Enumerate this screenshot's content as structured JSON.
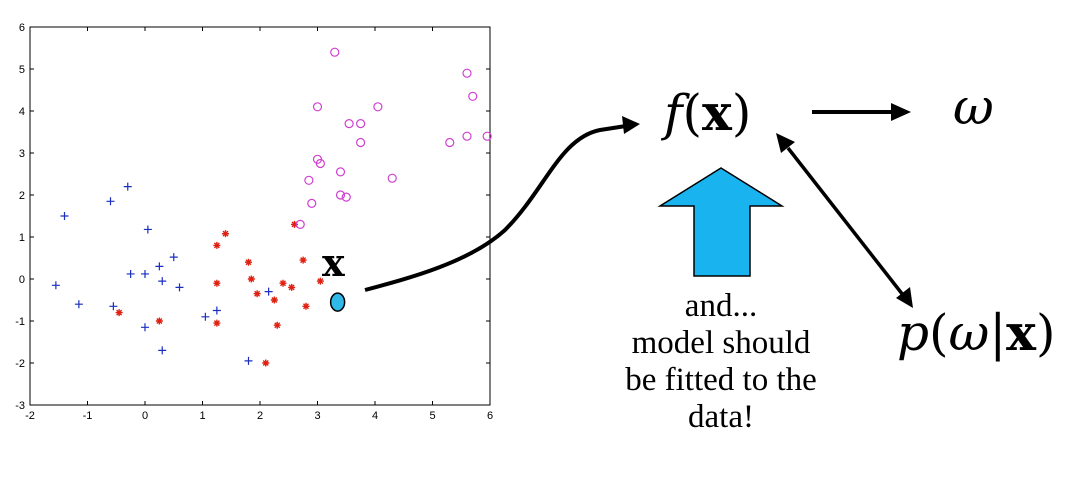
{
  "chart_data": {
    "type": "scatter",
    "xlim": [
      -2,
      6
    ],
    "ylim": [
      -3,
      6
    ],
    "x_ticks": [
      "-2",
      "-1",
      "0",
      "1",
      "2",
      "3",
      "4",
      "5",
      "6"
    ],
    "y_ticks": [
      "-3",
      "-2",
      "-1",
      "0",
      "1",
      "2",
      "3",
      "4",
      "5",
      "6"
    ],
    "series": [
      {
        "marker": "plus",
        "color": "#1a2fbf",
        "points": [
          [
            -1.55,
            -0.15
          ],
          [
            -1.4,
            1.5
          ],
          [
            -1.15,
            -0.6
          ],
          [
            -0.6,
            1.85
          ],
          [
            -0.55,
            -0.65
          ],
          [
            -0.3,
            2.2
          ],
          [
            -0.25,
            0.12
          ],
          [
            0,
            0.12
          ],
          [
            0.05,
            1.18
          ],
          [
            0,
            -1.15
          ],
          [
            0.25,
            0.3
          ],
          [
            0.3,
            -0.05
          ],
          [
            0.3,
            -1.7
          ],
          [
            0.5,
            0.52
          ],
          [
            0.6,
            -0.2
          ],
          [
            1.05,
            -0.9
          ],
          [
            1.25,
            -0.75
          ],
          [
            1.8,
            -1.95
          ],
          [
            2.15,
            -0.3
          ]
        ]
      },
      {
        "marker": "asterisk",
        "color": "#e02010",
        "points": [
          [
            -0.45,
            -0.8
          ],
          [
            0.25,
            -1.0
          ],
          [
            1.25,
            0.8
          ],
          [
            1.25,
            -0.1
          ],
          [
            1.25,
            -1.05
          ],
          [
            1.4,
            1.08
          ],
          [
            1.8,
            0.4
          ],
          [
            1.85,
            0.0
          ],
          [
            1.95,
            -0.35
          ],
          [
            2.1,
            -2.0
          ],
          [
            2.25,
            -0.5
          ],
          [
            2.3,
            -1.1
          ],
          [
            2.4,
            -0.1
          ],
          [
            2.55,
            -0.2
          ],
          [
            2.6,
            1.3
          ],
          [
            2.75,
            0.45
          ],
          [
            2.8,
            -0.65
          ],
          [
            3.05,
            -0.05
          ]
        ]
      },
      {
        "marker": "circle",
        "color": "#d040d0",
        "points": [
          [
            2.7,
            1.3
          ],
          [
            2.85,
            2.35
          ],
          [
            2.9,
            1.8
          ],
          [
            3.0,
            4.1
          ],
          [
            3.0,
            2.85
          ],
          [
            3.05,
            2.75
          ],
          [
            3.3,
            5.4
          ],
          [
            3.4,
            2.55
          ],
          [
            3.4,
            2.0
          ],
          [
            3.5,
            1.95
          ],
          [
            3.55,
            3.7
          ],
          [
            3.75,
            3.7
          ],
          [
            3.75,
            3.25
          ],
          [
            4.05,
            4.1
          ],
          [
            4.3,
            2.4
          ],
          [
            5.3,
            3.25
          ],
          [
            5.6,
            4.9
          ],
          [
            5.6,
            3.4
          ],
          [
            5.7,
            4.35
          ],
          [
            5.95,
            3.4
          ]
        ]
      }
    ],
    "query_point": {
      "x": 3.35,
      "y": -0.55,
      "color": "#30b8e8",
      "label": "x"
    }
  },
  "diagram": {
    "f_symbol": "f",
    "x_symbol": "x",
    "omega_symbol": "ω",
    "p_symbol": "p",
    "open_paren": "(",
    "close_paren": ")",
    "bar": "|",
    "big_arrow_color": "#19b4f0",
    "note_lines": [
      "and...",
      "model should",
      "be fitted to the",
      "data!"
    ]
  }
}
